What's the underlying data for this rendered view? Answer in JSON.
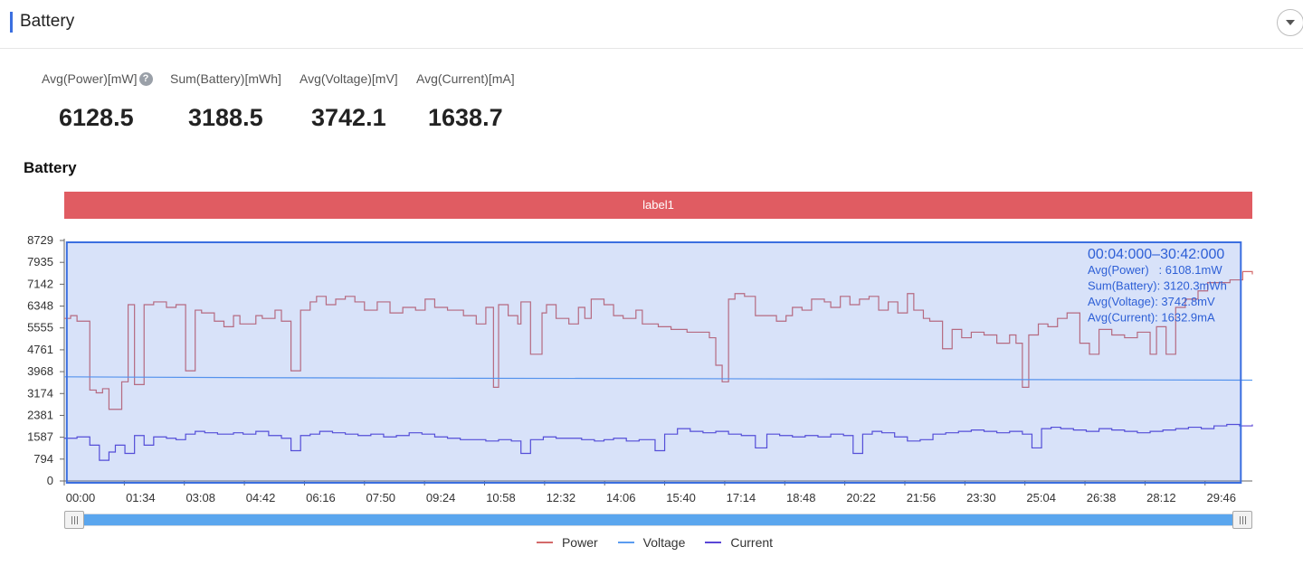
{
  "panel": {
    "title": "Battery"
  },
  "metrics": [
    {
      "label": "Avg(Power)[mW]",
      "value": "6128.5",
      "help": true
    },
    {
      "label": "Sum(Battery)[mWh]",
      "value": "3188.5"
    },
    {
      "label": "Avg(Voltage)[mV]",
      "value": "3742.1"
    },
    {
      "label": "Avg(Current)[mA]",
      "value": "1638.7"
    }
  ],
  "section_title": "Battery",
  "label_bar": {
    "text": "label1",
    "color": "#e05c62"
  },
  "tooltip": {
    "range": "00:04:000–30:42:000",
    "lines": [
      "Avg(Power)   : 6108.1mW",
      "Sum(Battery): 3120.3mWh",
      "Avg(Voltage): 3742.8mV",
      "Avg(Current): 1632.9mA"
    ]
  },
  "colors": {
    "accent": "#3b6fe0",
    "power": "#d46a6a",
    "voltage": "#5b9cf0",
    "current": "#5a46d6",
    "selection": "#3b6fe0",
    "slider": "#5aa6ee"
  },
  "chart_data": {
    "type": "line",
    "yticks": [
      "0",
      "794",
      "1587",
      "2381",
      "3174",
      "3968",
      "4761",
      "5555",
      "6348",
      "7142",
      "7935",
      "8729"
    ],
    "ylim": [
      0,
      8729
    ],
    "xticks": [
      "00:00",
      "01:34",
      "03:08",
      "04:42",
      "06:16",
      "07:50",
      "09:24",
      "10:58",
      "12:32",
      "14:06",
      "15:40",
      "17:14",
      "18:48",
      "20:22",
      "21:56",
      "23:30",
      "25:04",
      "26:38",
      "28:12",
      "29:46"
    ],
    "x_unit": "seconds",
    "xlim": [
      0,
      1860
    ],
    "selection": [
      4,
      1842
    ],
    "series": [
      {
        "name": "Power",
        "step": true,
        "points": [
          [
            0,
            5900
          ],
          [
            10,
            6000
          ],
          [
            20,
            5800
          ],
          [
            40,
            3300
          ],
          [
            50,
            3200
          ],
          [
            60,
            3350
          ],
          [
            70,
            2600
          ],
          [
            90,
            3600
          ],
          [
            100,
            6400
          ],
          [
            110,
            3500
          ],
          [
            125,
            6400
          ],
          [
            140,
            6500
          ],
          [
            160,
            6300
          ],
          [
            175,
            6400
          ],
          [
            190,
            4000
          ],
          [
            205,
            6200
          ],
          [
            215,
            6100
          ],
          [
            235,
            5800
          ],
          [
            250,
            5600
          ],
          [
            265,
            6000
          ],
          [
            275,
            5700
          ],
          [
            300,
            6000
          ],
          [
            310,
            5900
          ],
          [
            330,
            6200
          ],
          [
            340,
            5800
          ],
          [
            355,
            4000
          ],
          [
            370,
            6200
          ],
          [
            385,
            6500
          ],
          [
            395,
            6700
          ],
          [
            410,
            6400
          ],
          [
            425,
            6600
          ],
          [
            440,
            6700
          ],
          [
            455,
            6500
          ],
          [
            470,
            6200
          ],
          [
            490,
            6500
          ],
          [
            510,
            6100
          ],
          [
            530,
            6300
          ],
          [
            550,
            6200
          ],
          [
            565,
            6600
          ],
          [
            580,
            6300
          ],
          [
            600,
            6200
          ],
          [
            625,
            6000
          ],
          [
            645,
            5700
          ],
          [
            660,
            6300
          ],
          [
            672,
            3400
          ],
          [
            680,
            6400
          ],
          [
            695,
            6000
          ],
          [
            710,
            5700
          ],
          [
            715,
            6500
          ],
          [
            730,
            4600
          ],
          [
            748,
            6100
          ],
          [
            755,
            6400
          ],
          [
            770,
            5900
          ],
          [
            790,
            5700
          ],
          [
            805,
            6300
          ],
          [
            815,
            5900
          ],
          [
            825,
            6600
          ],
          [
            845,
            6400
          ],
          [
            860,
            6000
          ],
          [
            875,
            5900
          ],
          [
            895,
            6200
          ],
          [
            905,
            5700
          ],
          [
            930,
            5600
          ],
          [
            950,
            5500
          ],
          [
            975,
            5400
          ],
          [
            990,
            5400
          ],
          [
            1010,
            5200
          ],
          [
            1020,
            4200
          ],
          [
            1030,
            3600
          ],
          [
            1040,
            6600
          ],
          [
            1050,
            6800
          ],
          [
            1065,
            6700
          ],
          [
            1082,
            6000
          ],
          [
            1100,
            6000
          ],
          [
            1115,
            5800
          ],
          [
            1130,
            6000
          ],
          [
            1140,
            6300
          ],
          [
            1155,
            6200
          ],
          [
            1170,
            6600
          ],
          [
            1190,
            6500
          ],
          [
            1200,
            6300
          ],
          [
            1215,
            6700
          ],
          [
            1230,
            6400
          ],
          [
            1245,
            6600
          ],
          [
            1260,
            6700
          ],
          [
            1275,
            6200
          ],
          [
            1290,
            6500
          ],
          [
            1305,
            6100
          ],
          [
            1320,
            6800
          ],
          [
            1330,
            6200
          ],
          [
            1345,
            5900
          ],
          [
            1355,
            5800
          ],
          [
            1375,
            4800
          ],
          [
            1390,
            5500
          ],
          [
            1405,
            5200
          ],
          [
            1420,
            5400
          ],
          [
            1440,
            5300
          ],
          [
            1460,
            5000
          ],
          [
            1480,
            5300
          ],
          [
            1490,
            5000
          ],
          [
            1500,
            3400
          ],
          [
            1510,
            5300
          ],
          [
            1525,
            5700
          ],
          [
            1540,
            5600
          ],
          [
            1555,
            5900
          ],
          [
            1570,
            6100
          ],
          [
            1590,
            5000
          ],
          [
            1605,
            4600
          ],
          [
            1620,
            5500
          ],
          [
            1640,
            5300
          ],
          [
            1660,
            5200
          ],
          [
            1680,
            5400
          ],
          [
            1700,
            4600
          ],
          [
            1710,
            5600
          ],
          [
            1725,
            4600
          ],
          [
            1740,
            6300
          ],
          [
            1755,
            6600
          ],
          [
            1775,
            6900
          ],
          [
            1790,
            7200
          ],
          [
            1810,
            7200
          ],
          [
            1825,
            7300
          ],
          [
            1845,
            7600
          ],
          [
            1860,
            7500
          ]
        ]
      },
      {
        "name": "Voltage",
        "step": false,
        "points": [
          [
            0,
            3780
          ],
          [
            300,
            3750
          ],
          [
            600,
            3730
          ],
          [
            900,
            3720
          ],
          [
            1200,
            3700
          ],
          [
            1500,
            3680
          ],
          [
            1860,
            3660
          ]
        ]
      },
      {
        "name": "Current",
        "step": true,
        "points": [
          [
            0,
            1550
          ],
          [
            20,
            1600
          ],
          [
            40,
            1300
          ],
          [
            55,
            750
          ],
          [
            70,
            1050
          ],
          [
            80,
            1300
          ],
          [
            95,
            1000
          ],
          [
            110,
            1650
          ],
          [
            125,
            1300
          ],
          [
            140,
            1600
          ],
          [
            160,
            1550
          ],
          [
            175,
            1500
          ],
          [
            190,
            1700
          ],
          [
            205,
            1800
          ],
          [
            220,
            1750
          ],
          [
            240,
            1700
          ],
          [
            265,
            1750
          ],
          [
            280,
            1700
          ],
          [
            300,
            1800
          ],
          [
            320,
            1650
          ],
          [
            340,
            1550
          ],
          [
            355,
            1100
          ],
          [
            370,
            1650
          ],
          [
            385,
            1700
          ],
          [
            400,
            1800
          ],
          [
            420,
            1750
          ],
          [
            440,
            1700
          ],
          [
            460,
            1650
          ],
          [
            480,
            1700
          ],
          [
            500,
            1600
          ],
          [
            520,
            1650
          ],
          [
            540,
            1750
          ],
          [
            560,
            1700
          ],
          [
            580,
            1600
          ],
          [
            600,
            1550
          ],
          [
            620,
            1500
          ],
          [
            640,
            1500
          ],
          [
            660,
            1450
          ],
          [
            680,
            1500
          ],
          [
            700,
            1450
          ],
          [
            715,
            1000
          ],
          [
            730,
            1500
          ],
          [
            750,
            1600
          ],
          [
            770,
            1550
          ],
          [
            790,
            1550
          ],
          [
            810,
            1500
          ],
          [
            830,
            1450
          ],
          [
            845,
            1500
          ],
          [
            860,
            1550
          ],
          [
            880,
            1450
          ],
          [
            900,
            1500
          ],
          [
            925,
            1100
          ],
          [
            940,
            1700
          ],
          [
            960,
            1900
          ],
          [
            980,
            1800
          ],
          [
            1000,
            1750
          ],
          [
            1020,
            1800
          ],
          [
            1040,
            1700
          ],
          [
            1060,
            1650
          ],
          [
            1082,
            1200
          ],
          [
            1100,
            1700
          ],
          [
            1120,
            1650
          ],
          [
            1140,
            1600
          ],
          [
            1160,
            1650
          ],
          [
            1180,
            1600
          ],
          [
            1200,
            1700
          ],
          [
            1220,
            1650
          ],
          [
            1235,
            1000
          ],
          [
            1250,
            1700
          ],
          [
            1265,
            1800
          ],
          [
            1280,
            1750
          ],
          [
            1300,
            1600
          ],
          [
            1320,
            1450
          ],
          [
            1340,
            1500
          ],
          [
            1360,
            1700
          ],
          [
            1380,
            1750
          ],
          [
            1400,
            1800
          ],
          [
            1420,
            1850
          ],
          [
            1440,
            1800
          ],
          [
            1460,
            1750
          ],
          [
            1480,
            1800
          ],
          [
            1500,
            1700
          ],
          [
            1515,
            1200
          ],
          [
            1530,
            1900
          ],
          [
            1545,
            1950
          ],
          [
            1560,
            1900
          ],
          [
            1580,
            1850
          ],
          [
            1600,
            1800
          ],
          [
            1620,
            1900
          ],
          [
            1640,
            1850
          ],
          [
            1660,
            1800
          ],
          [
            1680,
            1750
          ],
          [
            1700,
            1800
          ],
          [
            1720,
            1850
          ],
          [
            1740,
            1900
          ],
          [
            1760,
            1950
          ],
          [
            1780,
            1900
          ],
          [
            1800,
            2000
          ],
          [
            1820,
            2050
          ],
          [
            1840,
            2000
          ],
          [
            1860,
            2050
          ]
        ]
      }
    ]
  },
  "legend": [
    "Power",
    "Voltage",
    "Current"
  ]
}
